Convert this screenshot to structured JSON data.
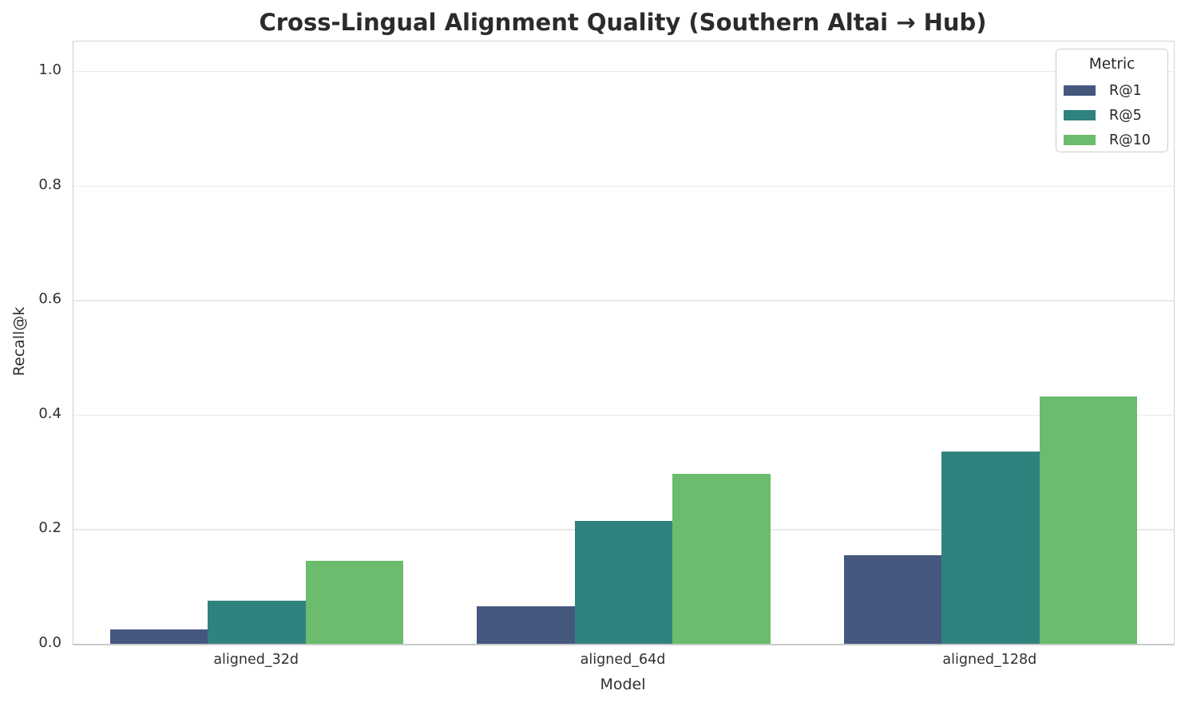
{
  "chart_data": {
    "type": "bar",
    "title": "Cross-Lingual Alignment Quality (Southern Altai → Hub)",
    "xlabel": "Model",
    "ylabel": "Recall@k",
    "legend_title": "Metric",
    "legend_position": "upper right",
    "grid": true,
    "categories": [
      "aligned_32d",
      "aligned_64d",
      "aligned_128d"
    ],
    "series": [
      {
        "name": "R@1",
        "color": "#45577E",
        "values": [
          0.025,
          0.065,
          0.155
        ]
      },
      {
        "name": "R@5",
        "color": "#2E837E",
        "values": [
          0.075,
          0.215,
          0.335
        ]
      },
      {
        "name": "R@10",
        "color": "#6BBC6D",
        "values": [
          0.145,
          0.297,
          0.432
        ]
      }
    ],
    "ylim": [
      0,
      1.05
    ],
    "yticks": [
      0.0,
      0.2,
      0.4,
      0.6,
      0.8,
      1.0
    ],
    "ytick_labels": [
      "0.0",
      "0.2",
      "0.4",
      "0.6",
      "0.8",
      "1.0"
    ]
  },
  "colors": {
    "background": "#FFFFFF",
    "grid": "#E9E9E9",
    "spine": "#CCCCCC",
    "text": "#262626"
  }
}
